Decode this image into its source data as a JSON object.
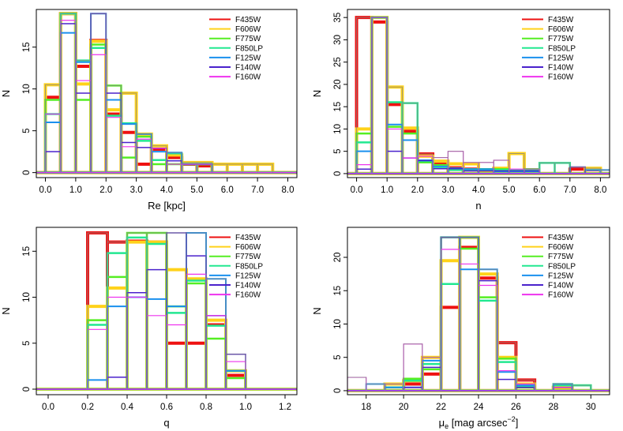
{
  "colors": {
    "F435W": "#ee1111",
    "F606W": "#ffd21a",
    "F775W": "#55ee22",
    "F850LP": "#22e890",
    "F125W": "#1a90ee",
    "F140W": "#4a22cc",
    "F160W": "#ee33ee",
    "gray": "#888888"
  },
  "chart_data": [
    {
      "type": "histogram",
      "xlabel": "Re [kpc]",
      "ylabel": "N",
      "xlim": [
        -0.3,
        8.3
      ],
      "ylim": [
        -0.6,
        19.5
      ],
      "xticks": [
        0,
        1,
        2,
        3,
        4,
        5,
        6,
        7,
        8
      ],
      "xtick_labels": [
        "0.0",
        "1.0",
        "2.0",
        "3.0",
        "4.0",
        "5.0",
        "6.0",
        "7.0",
        "8.0"
      ],
      "yticks": [
        0,
        5,
        10,
        15
      ],
      "bin_width": 0.5,
      "bin_start": 0,
      "num_bins": 17,
      "legend": [
        "F435W",
        "F606W",
        "F775W",
        "F850LP",
        "F125W",
        "F140W",
        "F160W"
      ],
      "legend_position": "top-right",
      "series": [
        {
          "name": "F435W",
          "width": 4,
          "values": [
            9,
            19,
            12.7,
            15.8,
            7,
            4.8,
            1,
            2.8,
            1.8,
            1,
            0.8,
            0,
            0,
            0,
            0,
            0,
            0
          ]
        },
        {
          "name": "F606W",
          "width": 4,
          "values": [
            10.5,
            19,
            10.6,
            15.7,
            7.5,
            9.5,
            4.6,
            3.2,
            2.1,
            1.2,
            1.2,
            1,
            1,
            1,
            1,
            0,
            0
          ]
        },
        {
          "name": "F775W",
          "width": 2.5,
          "values": [
            8.7,
            19,
            8.7,
            15.3,
            10.4,
            1.8,
            4.3,
            1,
            1,
            1,
            1,
            0,
            0,
            0,
            0,
            0,
            0
          ]
        },
        {
          "name": "F850LP",
          "width": 2.5,
          "values": [
            7,
            19,
            13.4,
            14.9,
            6.8,
            5.9,
            3.8,
            1.5,
            2.3,
            1,
            1,
            0,
            0,
            0,
            0,
            0,
            0
          ]
        },
        {
          "name": "F125W",
          "width": 2,
          "values": [
            6,
            16.7,
            13.2,
            19,
            8.7,
            5.8,
            4.6,
            2.5,
            2.4,
            0,
            0,
            0,
            0,
            0,
            0,
            0,
            0
          ]
        },
        {
          "name": "F140W",
          "width": 1.5,
          "values": [
            2.5,
            17.8,
            9.5,
            19,
            9.5,
            3.6,
            3,
            2.9,
            1.4,
            1,
            1,
            0,
            0,
            0,
            0,
            0,
            0
          ]
        },
        {
          "name": "F160W",
          "width": 1.2,
          "values": [
            7,
            18.2,
            11,
            14.1,
            6.6,
            3.1,
            4,
            2.9,
            1,
            1,
            1,
            0,
            0,
            0,
            0,
            0,
            0
          ]
        }
      ]
    },
    {
      "type": "histogram",
      "xlabel": "n",
      "ylabel": "N",
      "xlim": [
        -0.3,
        8.3
      ],
      "ylim": [
        -0.9,
        36.8
      ],
      "xticks": [
        0,
        1,
        2,
        3,
        4,
        5,
        6,
        7,
        8
      ],
      "xtick_labels": [
        "0.0",
        "1.0",
        "2.0",
        "3.0",
        "4.0",
        "5.0",
        "6.0",
        "7.0",
        "8.0"
      ],
      "yticks": [
        0,
        5,
        10,
        15,
        20,
        25,
        30,
        35
      ],
      "bin_width": 0.5,
      "bin_start": 0,
      "num_bins": 17,
      "legend": [
        "F435W",
        "F606W",
        "F775W",
        "F850LP",
        "F125W",
        "F140W",
        "F160W"
      ],
      "legend_position": "top-right",
      "series": [
        {
          "name": "F435W",
          "width": 4,
          "values": [
            35,
            34,
            15.5,
            9.5,
            4.4,
            2.4,
            1.3,
            1,
            0.5,
            1,
            0,
            0,
            0,
            0,
            1,
            0.9,
            0
          ]
        },
        {
          "name": "F606W",
          "width": 4,
          "values": [
            10,
            35,
            19.4,
            10.2,
            3.9,
            2.8,
            2.2,
            2.2,
            0.7,
            1.2,
            4.5,
            0,
            0,
            0,
            0,
            1.2,
            0
          ]
        },
        {
          "name": "F775W",
          "width": 2.5,
          "values": [
            9,
            35,
            10.5,
            9,
            2.5,
            1.9,
            1,
            1,
            1,
            1,
            0,
            1,
            0,
            0,
            0,
            0,
            0
          ]
        },
        {
          "name": "F850LP",
          "width": 2.5,
          "values": [
            7,
            35,
            16,
            15.8,
            2.8,
            1.2,
            0.8,
            0.8,
            0.8,
            0.8,
            0.8,
            0.8,
            2.4,
            2.4,
            0,
            0,
            0
          ]
        },
        {
          "name": "F125W",
          "width": 2,
          "values": [
            5,
            35,
            11,
            7.5,
            3,
            1.6,
            1.2,
            1,
            1,
            0.5,
            0.5,
            0.5,
            0,
            0,
            0,
            0.8,
            0.8
          ]
        },
        {
          "name": "F140W",
          "width": 1.5,
          "values": [
            1,
            35,
            5,
            3.5,
            2.9,
            1.1,
            1.1,
            0.6,
            0.6,
            0.6,
            0.6,
            0.6,
            0,
            0,
            1.5,
            0,
            0
          ]
        },
        {
          "name": "F160W",
          "width": 1.2,
          "values": [
            2,
            35,
            10,
            3.5,
            3.9,
            3.6,
            5,
            2.5,
            2.5,
            3,
            1,
            1,
            0,
            0,
            0,
            0,
            0
          ]
        }
      ]
    },
    {
      "type": "histogram",
      "xlabel": "q",
      "ylabel": "N",
      "xlim": [
        -0.06,
        1.26
      ],
      "ylim": [
        -0.6,
        17.6
      ],
      "xticks": [
        0,
        0.2,
        0.4,
        0.6,
        0.8,
        1.0,
        1.2
      ],
      "xtick_labels": [
        "0.0",
        "0.2",
        "0.4",
        "0.6",
        "0.8",
        "1.0",
        "1.2"
      ],
      "yticks": [
        0,
        5,
        10,
        15
      ],
      "bin_width": 0.1,
      "bin_start": 0,
      "num_bins": 10,
      "legend": [
        "F435W",
        "F606W",
        "F775W",
        "F850LP",
        "F125W",
        "F140W",
        "F160W"
      ],
      "legend_position": "top-right",
      "series": [
        {
          "name": "F435W",
          "width": 4,
          "values": [
            0,
            0,
            17,
            16,
            16.1,
            16,
            5,
            5,
            7,
            1.5
          ]
        },
        {
          "name": "F606W",
          "width": 4,
          "values": [
            0,
            0,
            9,
            11,
            16,
            16,
            13,
            12,
            7.5,
            2
          ]
        },
        {
          "name": "F775W",
          "width": 2.5,
          "values": [
            0,
            0,
            7.5,
            12.2,
            17,
            17,
            9,
            11.5,
            5.5,
            1.2
          ]
        },
        {
          "name": "F850LP",
          "width": 2.5,
          "values": [
            0,
            0,
            7,
            14.8,
            16.5,
            15.8,
            8.3,
            11.8,
            6.9,
            2
          ]
        },
        {
          "name": "F125W",
          "width": 2,
          "values": [
            0,
            0,
            1,
            9,
            10,
            9.8,
            9,
            17,
            12,
            2
          ]
        },
        {
          "name": "F140W",
          "width": 1.5,
          "values": [
            0,
            0,
            0,
            1.3,
            10.5,
            13,
            17,
            14.5,
            8,
            3.8
          ]
        },
        {
          "name": "F160W",
          "width": 1.2,
          "values": [
            0,
            0,
            6.5,
            10,
            10,
            8,
            7,
            12.5,
            8,
            3
          ]
        }
      ]
    },
    {
      "type": "histogram",
      "xlabel": "μe [mag arcsec⁻²]",
      "ylabel": "N",
      "xlim": [
        17,
        31
      ],
      "ylim": [
        -0.6,
        24.5
      ],
      "xticks": [
        18,
        20,
        22,
        24,
        26,
        28,
        30
      ],
      "xtick_labels": [
        "18",
        "20",
        "22",
        "24",
        "26",
        "28",
        "30"
      ],
      "yticks": [
        0,
        5,
        10,
        15,
        20
      ],
      "bin_width": 1,
      "bin_start": 17,
      "num_bins": 13,
      "legend": [
        "F435W",
        "F606W",
        "F775W",
        "F850LP",
        "F125W",
        "F140W",
        "F160W"
      ],
      "legend_position": "top-right",
      "series": [
        {
          "name": "F435W",
          "width": 4,
          "values": [
            0,
            0,
            0,
            1,
            2.5,
            12.5,
            21.5,
            16.9,
            7.2,
            1.6,
            0,
            0.5,
            0
          ]
        },
        {
          "name": "F606W",
          "width": 4,
          "values": [
            0,
            0,
            1,
            1.5,
            5,
            19.5,
            23,
            17.5,
            5,
            1,
            0,
            0.5,
            0
          ]
        },
        {
          "name": "F775W",
          "width": 2.5,
          "values": [
            0,
            0,
            0.5,
            1.8,
            3.2,
            23,
            21.3,
            14,
            4.8,
            0.5,
            0,
            1,
            0.8
          ]
        },
        {
          "name": "F850LP",
          "width": 2.5,
          "values": [
            0,
            0,
            0,
            1.5,
            4,
            16,
            23,
            13.5,
            4.3,
            0.6,
            0,
            0.8,
            0.8
          ]
        },
        {
          "name": "F125W",
          "width": 2,
          "values": [
            0,
            1,
            0.5,
            0.5,
            4.5,
            23,
            18.2,
            18.2,
            2.8,
            0.8,
            0,
            1,
            0
          ]
        },
        {
          "name": "F140W",
          "width": 1.5,
          "values": [
            0,
            0,
            0,
            0.5,
            3.5,
            23,
            23,
            16.5,
            1.7,
            0.5,
            0,
            0.5,
            0
          ]
        },
        {
          "name": "F160W",
          "width": 1.2,
          "values": [
            2,
            0,
            1,
            7,
            5,
            21.2,
            19,
            15.8,
            3,
            1,
            0,
            0.5,
            0
          ]
        }
      ]
    }
  ]
}
